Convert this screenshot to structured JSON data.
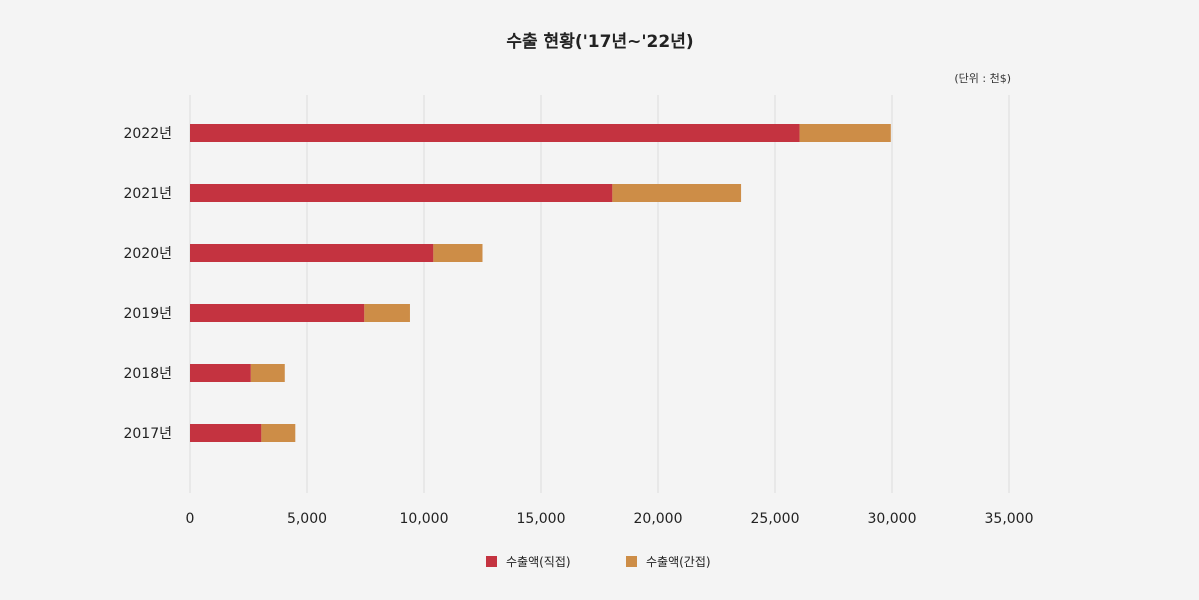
{
  "chart_data": {
    "type": "bar",
    "orientation": "horizontal",
    "stacked": true,
    "title": "수출 현황('17년~'22년)",
    "unit_note": "(단위 : 천$)",
    "categories": [
      "2022년",
      "2021년",
      "2020년",
      "2019년",
      "2018년",
      "2017년"
    ],
    "series": [
      {
        "name": "수출액(직접)",
        "color": "#c43340",
        "values": [
          26050,
          18050,
          10400,
          7450,
          2600,
          3050
        ]
      },
      {
        "name": "수출액(간접)",
        "color": "#cd8d47",
        "values": [
          3900,
          5500,
          2100,
          1950,
          1450,
          1450
        ]
      }
    ],
    "xlim": [
      0,
      35000
    ],
    "xticks": [
      0,
      5000,
      10000,
      15000,
      20000,
      25000,
      30000,
      35000
    ],
    "xtick_labels": [
      "0",
      "5,000",
      "10,000",
      "15,000",
      "20,000",
      "25,000",
      "30,000",
      "35,000"
    ],
    "grid": true,
    "legend_position": "bottom-center"
  }
}
